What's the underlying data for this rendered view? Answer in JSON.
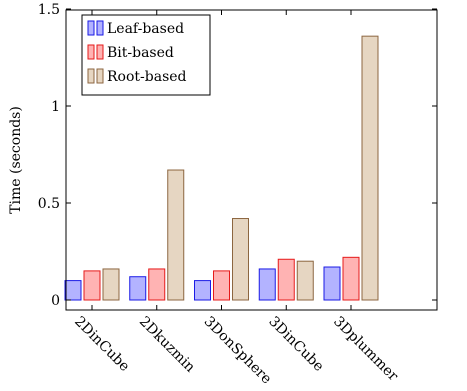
{
  "chart_data": {
    "type": "bar",
    "ylabel": "Time (seconds)",
    "xlabel": "",
    "title": "",
    "ylim": [
      0,
      1.5
    ],
    "yticks": [
      0,
      0.5,
      1,
      1.5
    ],
    "ytick_labels": [
      "0",
      "0.5",
      "1",
      "1.5"
    ],
    "categories": [
      "2DinCube",
      "2Dkuzmin",
      "3DonSphere",
      "3DinCube",
      "3Dplummer"
    ],
    "series": [
      {
        "name": "Leaf-based",
        "values": [
          0.1,
          0.12,
          0.1,
          0.16,
          0.17
        ],
        "fill": "#b3b3ff",
        "stroke": "#1a1ae6"
      },
      {
        "name": "Bit-based",
        "values": [
          0.15,
          0.16,
          0.15,
          0.21,
          0.22
        ],
        "fill": "#ffb3b3",
        "stroke": "#e61a1a"
      },
      {
        "name": "Root-based",
        "values": [
          0.16,
          0.67,
          0.42,
          0.2,
          1.36
        ],
        "fill": "#e6d6c2",
        "stroke": "#8c6640"
      }
    ],
    "grid": false,
    "legend_position": "top-left"
  }
}
